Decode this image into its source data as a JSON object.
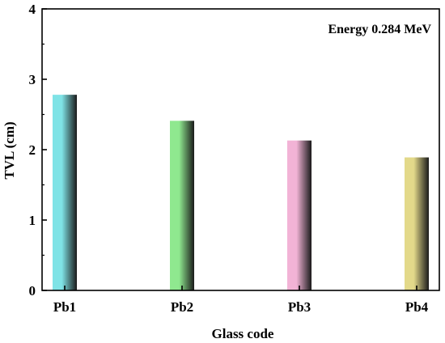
{
  "chart_data": {
    "type": "bar",
    "categories": [
      "Pb1",
      "Pb2",
      "Pb3",
      "Pb4"
    ],
    "series": [
      {
        "values": [
          2.78,
          2.41,
          2.13,
          1.89
        ]
      }
    ],
    "xlabel": "Glass code",
    "ylabel": "TVL (cm)",
    "ylim": [
      0,
      4
    ],
    "yticks": [
      "0",
      "1",
      "2",
      "3",
      "4"
    ],
    "annotation": "Energy 0.284 MeV",
    "annotation_placement": "top-right",
    "grid": false,
    "bar_colors": [
      "#7fe3e6",
      "#8fe88f",
      "#f2b3d6",
      "#e3d98a"
    ],
    "bar_shade_color": "#1a1a1a"
  }
}
